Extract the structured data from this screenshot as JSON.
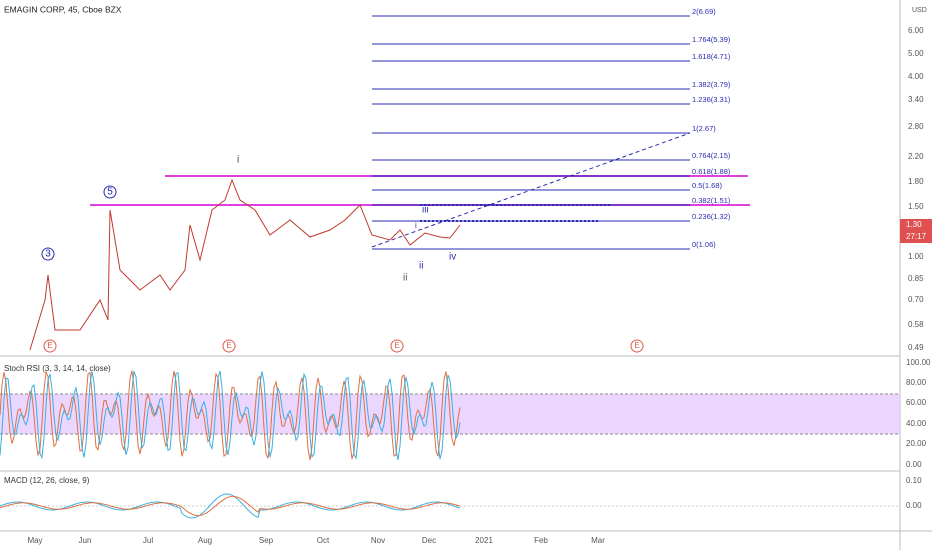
{
  "header": {
    "title": "EMAGIN CORP, 45, Cboe BZX"
  },
  "price_axis": {
    "currency": "USD",
    "labels": [
      "6.00",
      "5.00",
      "4.00",
      "3.40",
      "2.80",
      "2.20",
      "1.80",
      "1.50",
      "1.00",
      "0.85",
      "0.70",
      "0.58",
      "0.49"
    ],
    "current_price": "1.30",
    "countdown": "27:17"
  },
  "fib_levels": [
    "2(6.69)",
    "1.764(5.39)",
    "1.618(4.71)",
    "1.382(3.79)",
    "1.236(3.31)",
    "1(2.67)",
    "0.764(2.15)",
    "0.618(1.88)",
    "0.5(1.68)",
    "0.382(1.51)",
    "0.236(1.32)",
    "0(1.06)"
  ],
  "waves": [
    "i",
    "5",
    "3",
    "iii",
    "ii",
    "iv",
    "ii",
    "i"
  ],
  "events": [
    "E",
    "E",
    "E",
    "E"
  ],
  "stoch": {
    "label": "Stoch RSI (3, 3, 14, 14, close)",
    "axis": [
      "100.00",
      "80.00",
      "60.00",
      "40.00",
      "20.00",
      "0.00"
    ]
  },
  "macd": {
    "label": "MACD (12, 26, close, 9)",
    "axis": [
      "0.10",
      "0.00"
    ]
  },
  "time_axis": [
    "May",
    "Jun",
    "Jul",
    "Aug",
    "Sep",
    "Oct",
    "Nov",
    "Dec",
    "2021",
    "Feb",
    "Mar"
  ]
}
